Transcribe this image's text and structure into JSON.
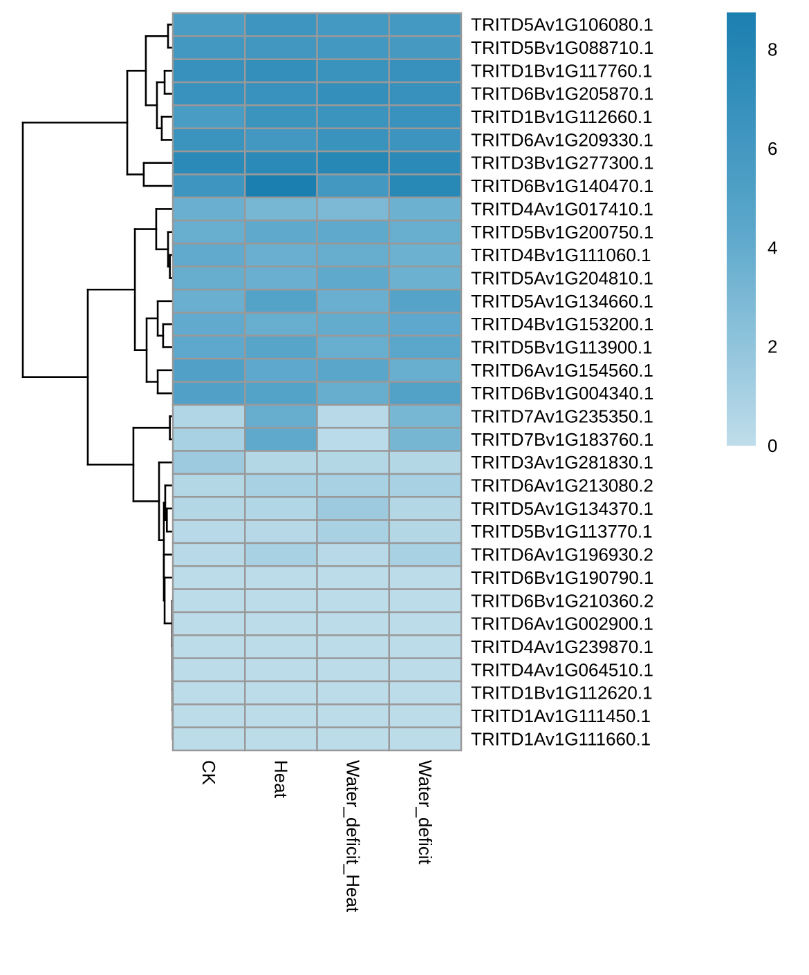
{
  "chart_data": {
    "type": "heatmap",
    "title": "",
    "xlabel": "",
    "ylabel": "",
    "columns": [
      "CK",
      "Heat",
      "Water_deficit_Heat",
      "Water_deficit"
    ],
    "rows": [
      "TRITD5Av1G106080.1",
      "TRITD5Bv1G088710.1",
      "TRITD1Bv1G117760.1",
      "TRITD6Bv1G205870.1",
      "TRITD1Bv1G112660.1",
      "TRITD6Av1G209330.1",
      "TRITD3Bv1G277300.1",
      "TRITD6Bv1G140470.1",
      "TRITD4Av1G017410.1",
      "TRITD5Bv1G200750.1",
      "TRITD4Bv1G111060.1",
      "TRITD5Av1G204810.1",
      "TRITD5Av1G134660.1",
      "TRITD4Bv1G153200.1",
      "TRITD5Bv1G113900.1",
      "TRITD6Av1G154560.1",
      "TRITD6Bv1G004340.1",
      "TRITD7Av1G235350.1",
      "TRITD7Bv1G183760.1",
      "TRITD3Av1G281830.1",
      "TRITD6Av1G213080.2",
      "TRITD5Av1G134370.1",
      "TRITD5Bv1G113770.1",
      "TRITD6Av1G196930.2",
      "TRITD6Bv1G190790.1",
      "TRITD6Bv1G210360.2",
      "TRITD6Av1G002900.1",
      "TRITD4Av1G239870.1",
      "TRITD4Av1G064510.1",
      "TRITD1Bv1G112620.1",
      "TRITD1Av1G111450.1",
      "TRITD1Av1G111660.1"
    ],
    "values": [
      [
        5.6,
        6.3,
        5.9,
        5.9
      ],
      [
        6.0,
        6.1,
        6.0,
        5.8
      ],
      [
        6.8,
        7.0,
        6.6,
        6.8
      ],
      [
        6.7,
        6.7,
        7.0,
        6.8
      ],
      [
        5.6,
        6.5,
        6.5,
        6.7
      ],
      [
        6.5,
        6.0,
        6.6,
        6.4
      ],
      [
        7.6,
        7.6,
        7.9,
        7.6
      ],
      [
        6.3,
        8.7,
        6.0,
        7.8
      ],
      [
        3.7,
        3.1,
        2.9,
        3.6
      ],
      [
        3.8,
        4.2,
        4.2,
        3.8
      ],
      [
        4.1,
        3.7,
        3.9,
        3.6
      ],
      [
        3.9,
        3.7,
        4.2,
        3.6
      ],
      [
        3.7,
        4.9,
        3.7,
        4.8
      ],
      [
        4.1,
        3.8,
        4.0,
        4.3
      ],
      [
        4.3,
        4.6,
        3.8,
        4.4
      ],
      [
        5.1,
        4.3,
        4.5,
        3.8
      ],
      [
        5.1,
        4.9,
        3.9,
        5.0
      ],
      [
        0.6,
        3.9,
        0.3,
        3.1
      ],
      [
        1.0,
        4.2,
        0.2,
        3.2
      ],
      [
        1.5,
        0.5,
        0.5,
        0.5
      ],
      [
        0.5,
        1.0,
        1.0,
        1.0
      ],
      [
        0.5,
        0.6,
        1.5,
        0.5
      ],
      [
        0.3,
        0.4,
        1.0,
        0.5
      ],
      [
        0.3,
        1.0,
        0.3,
        1.0
      ],
      [
        0.1,
        0.1,
        0.1,
        0.1
      ],
      [
        0.1,
        0.1,
        0.1,
        0.1
      ],
      [
        0.1,
        0.1,
        0.1,
        0.1
      ],
      [
        0.1,
        0.1,
        0.1,
        0.1
      ],
      [
        0.1,
        0.1,
        0.1,
        0.1
      ],
      [
        0.1,
        0.1,
        0.1,
        0.1
      ],
      [
        0.1,
        0.1,
        0.1,
        0.1
      ],
      [
        0.1,
        0.1,
        0.1,
        0.1
      ]
    ],
    "color_scale": {
      "min": 0,
      "max": 8.75,
      "low_color": "#BFDDEA",
      "mid_color": "#5BA7CB",
      "high_color": "#1A7FB0",
      "ticks": [
        0,
        2,
        4,
        6,
        8
      ],
      "tick_labels": [
        "0",
        "2",
        "4",
        "6",
        "8"
      ]
    },
    "cell_border_color": "#999999",
    "row_dendrogram": {
      "note": "merge heights in relative distance units (root = 1.0)",
      "tree": {
        "h": 1.0,
        "children": [
          {
            "h": 0.304,
            "children": [
              {
                "h": 0.18,
                "children": [
                  {
                    "h": 0.032,
                    "children": [
                      0,
                      1
                    ]
                  },
                  {
                    "h": 0.106,
                    "children": [
                      {
                        "h": 0.055,
                        "children": [
                          2,
                          3
                        ]
                      },
                      {
                        "h": 0.074,
                        "children": [
                          4,
                          5
                        ]
                      }
                    ]
                  }
                ]
              },
              {
                "h": 0.194,
                "children": [
                  6,
                  7
                ]
              }
            ]
          },
          {
            "h": 0.567,
            "children": [
              {
                "h": 0.253,
                "children": [
                  {
                    "h": 0.111,
                    "children": [
                      8,
                      {
                        "h": 0.032,
                        "children": [
                          9,
                          {
                            "h": 0.02,
                            "children": [
                              10,
                              11
                            ]
                          }
                        ]
                      }
                    ]
                  },
                  {
                    "h": 0.175,
                    "children": [
                      {
                        "h": 0.101,
                        "children": [
                          12,
                          {
                            "h": 0.065,
                            "children": [
                              13,
                              14
                            ]
                          }
                        ]
                      },
                      {
                        "h": 0.101,
                        "children": [
                          15,
                          16
                        ]
                      }
                    ]
                  }
                ]
              },
              {
                "h": 0.263,
                "children": [
                  {
                    "h": 0.02,
                    "children": [
                      17,
                      18
                    ]
                  },
                  {
                    "h": 0.092,
                    "children": [
                      19,
                      {
                        "h": 0.06,
                        "children": [
                          {
                            "h": 0.051,
                            "children": [
                              20,
                              {
                                "h": 0.04,
                                "children": [
                                  21,
                                  22
                                ]
                              }
                            ]
                          },
                          {
                            "h": 0.06,
                            "children": [
                              23,
                              {
                                "h": 0.055,
                                "children": [
                                  24,
                                  {
                                    "h": 0.004,
                                    "children": [
                                      25,
                                      {
                                        "h": 0.003,
                                        "children": [
                                          26,
                                          {
                                            "h": 0.002,
                                            "children": [
                                              27,
                                              {
                                                "h": 0.002,
                                                "children": [
                                                  28,
                                                  {
                                                    "h": 0.001,
                                                    "children": [
                                                      29,
                                                      {
                                                        "h": 0.001,
                                                        "children": [
                                                          30,
                                                          31
                                                        ]
                                                      }
                                                    ]
                                                  }
                                                ]
                                              }
                                            ]
                                          }
                                        ]
                                      }
                                    ]
                                  }
                                ]
                              }
                            ]
                          }
                        ]
                      }
                    ]
                  }
                ]
              }
            ]
          }
        ]
      }
    },
    "legend_position": "top-right"
  }
}
